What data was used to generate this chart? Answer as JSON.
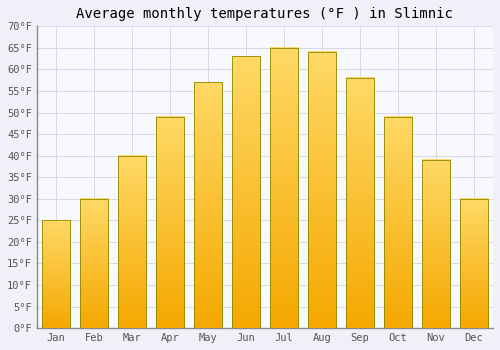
{
  "title": "Average monthly temperatures (°F ) in Slimnic",
  "months": [
    "Jan",
    "Feb",
    "Mar",
    "Apr",
    "May",
    "Jun",
    "Jul",
    "Aug",
    "Sep",
    "Oct",
    "Nov",
    "Dec"
  ],
  "values": [
    25,
    30,
    40,
    49,
    57,
    63,
    65,
    64,
    58,
    49,
    39,
    30
  ],
  "bar_color_bottom": "#F5A800",
  "bar_color_top": "#FFD966",
  "bar_edge_color": "#888800",
  "ylim": [
    0,
    70
  ],
  "yticks": [
    0,
    5,
    10,
    15,
    20,
    25,
    30,
    35,
    40,
    45,
    50,
    55,
    60,
    65,
    70
  ],
  "ylabel_suffix": "°F",
  "background_color": "#f0f0f8",
  "plot_bg_color": "#f8f8ff",
  "grid_color": "#d8d8e8",
  "title_fontsize": 10,
  "tick_fontsize": 7.5,
  "font_family": "monospace"
}
